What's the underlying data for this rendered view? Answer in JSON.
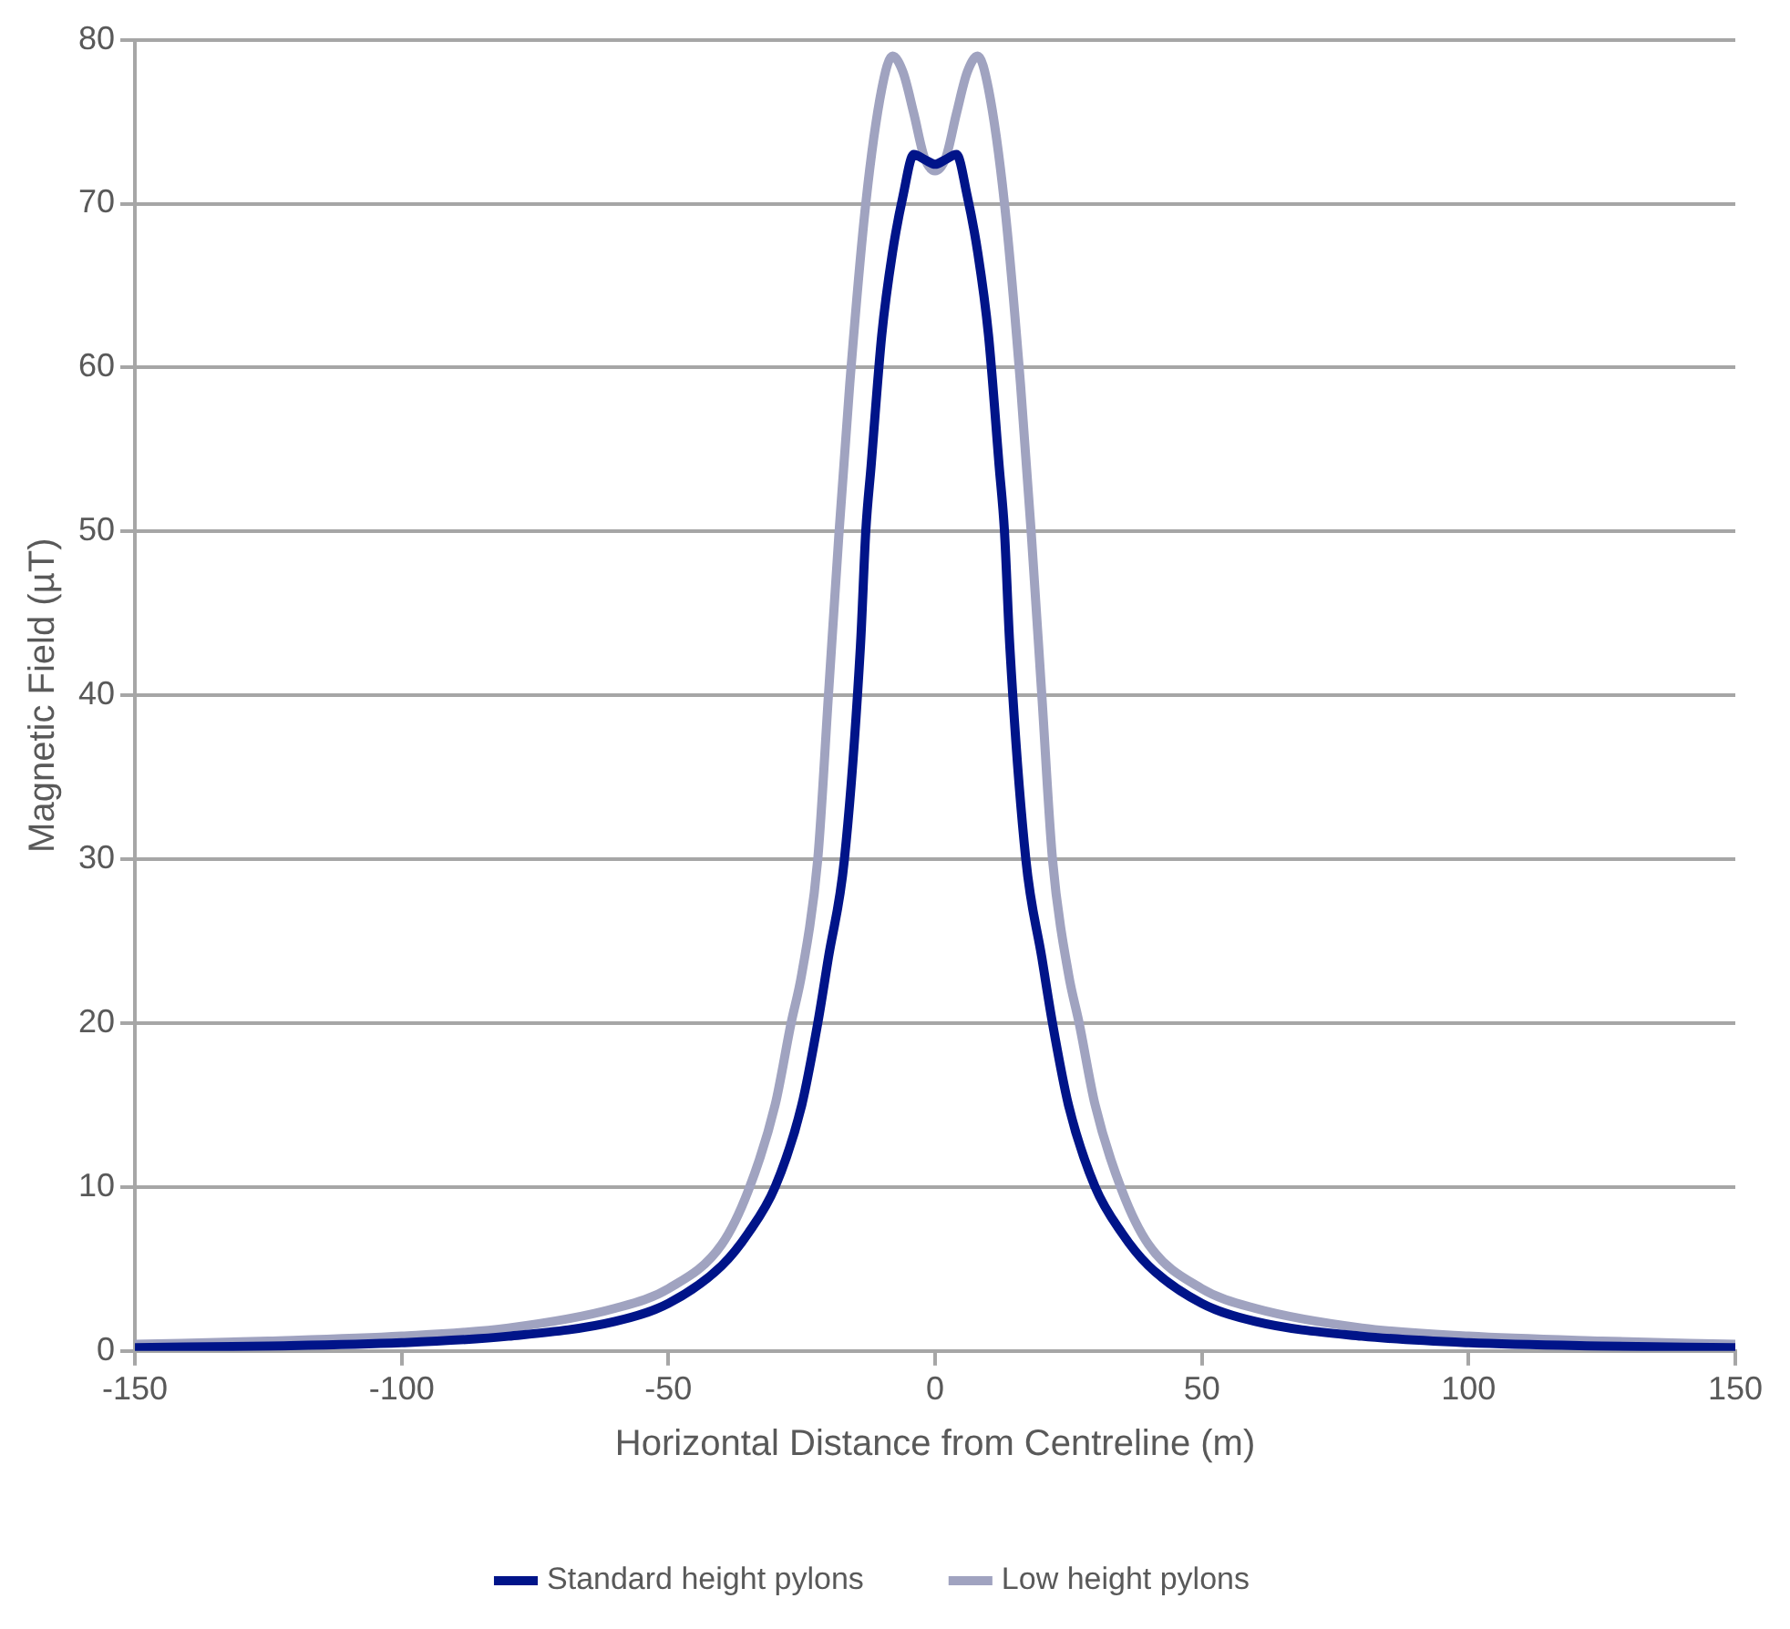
{
  "chart_data": {
    "type": "line",
    "xlabel": "Horizontal Distance from Centreline (m)",
    "ylabel": "Magnetic Field (µT)",
    "xlim": [
      -150,
      150
    ],
    "xticks": [
      -150,
      -100,
      -50,
      0,
      50,
      100,
      150
    ],
    "ylim": [
      0,
      80
    ],
    "yticks": [
      0,
      10,
      20,
      30,
      40,
      50,
      60,
      70,
      80
    ],
    "grid": "y",
    "legend": "bottom",
    "marker": "none",
    "line_style": "solid",
    "series": [
      {
        "name": "Standard height pylons",
        "color": "#001489",
        "x": [
          -150,
          -125,
          -100,
          -80,
          -60,
          -50,
          -40,
          -35,
          -30,
          -25,
          -22,
          -20,
          -17,
          -14,
          -13,
          -12,
          -10,
          -8,
          -6,
          -4,
          -2,
          0,
          2,
          4,
          6,
          8,
          10,
          12,
          13,
          14,
          17,
          20,
          22,
          25,
          30,
          35,
          40,
          50,
          60,
          80,
          100,
          125,
          150
        ],
        "values": [
          0.2,
          0.3,
          0.5,
          0.9,
          1.8,
          2.9,
          5.2,
          7.2,
          10,
          15,
          20,
          24,
          30,
          43,
          50,
          54,
          62,
          67,
          70.5,
          73,
          72.7,
          72.4,
          72.7,
          73,
          70.5,
          67,
          62,
          54,
          50,
          43,
          30,
          24,
          20,
          15,
          10,
          7.2,
          5.2,
          2.9,
          1.8,
          0.9,
          0.5,
          0.3,
          0.2
        ]
      },
      {
        "name": "Low height pylons",
        "color": "#a0a3c0",
        "x": [
          -150,
          -125,
          -100,
          -80,
          -60,
          -50,
          -40,
          -35,
          -30,
          -27,
          -25,
          -22,
          -20,
          -18,
          -16,
          -13,
          -10,
          -8,
          -6,
          -4,
          -2,
          0,
          2,
          4,
          6,
          8,
          10,
          13,
          16,
          18,
          20,
          22,
          25,
          27,
          30,
          35,
          40,
          50,
          60,
          80,
          100,
          125,
          150
        ],
        "values": [
          0.4,
          0.6,
          0.9,
          1.4,
          2.6,
          3.8,
          6.5,
          9.8,
          15,
          20,
          23,
          30,
          40,
          50,
          59,
          70,
          77,
          79,
          78,
          75.5,
          72.8,
          72,
          72.8,
          75.5,
          78,
          79,
          77,
          70,
          59,
          50,
          40,
          30,
          23,
          20,
          15,
          9.8,
          6.5,
          3.8,
          2.6,
          1.4,
          0.9,
          0.6,
          0.4
        ]
      }
    ]
  }
}
